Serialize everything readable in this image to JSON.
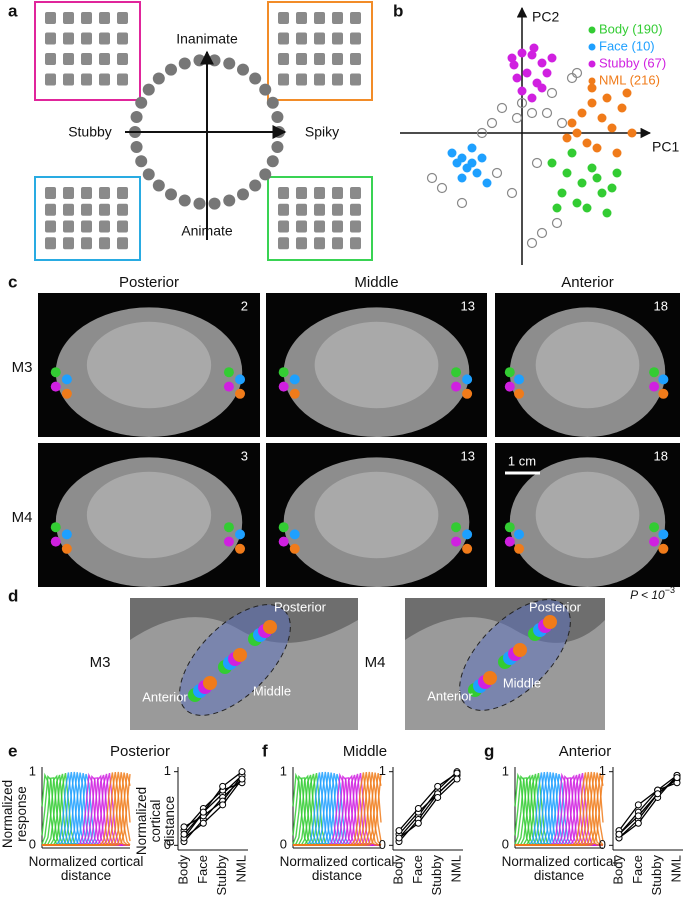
{
  "panels": {
    "a": {
      "label": "a",
      "axes": {
        "top": "Inanimate",
        "bottom": "Animate",
        "left": "Stubby",
        "right": "Spiky"
      }
    },
    "b": {
      "label": "b"
    },
    "c": {
      "label": "c",
      "columns": [
        "Posterior",
        "Middle",
        "Anterior"
      ],
      "rows": [
        "M3",
        "M4"
      ],
      "slices": [
        [
          2,
          13,
          18
        ],
        [
          3,
          13,
          18
        ]
      ],
      "scale": "1 cm"
    },
    "d": {
      "label": "d",
      "stat": {
        "text": "P < 10",
        "exponent": "−3"
      },
      "maps": [
        {
          "monkey": "M3",
          "labels": [
            "Posterior",
            "Anterior",
            "Middle"
          ]
        },
        {
          "monkey": "M4",
          "labels": [
            "Posterior",
            "Anterior",
            "Middle"
          ]
        }
      ]
    },
    "tuning": [
      {
        "y_label": "Normalized response",
        "x_label": "Normalized cortical distance",
        "yticks": [
          0,
          1
        ]
      },
      {
        "x_label": "Normalized cortical distance",
        "yticks": [
          0,
          1
        ]
      },
      {
        "x_label": "Normalized cortical distance",
        "yticks": [
          0,
          1
        ]
      }
    ]
  },
  "chart_data": [
    {
      "type": "scatter",
      "x_label": "PC1",
      "y_label": "PC2",
      "xlim": [
        -1.2,
        1.4
      ],
      "ylim": [
        -1.3,
        1.2
      ],
      "series": [
        {
          "name": "Body (190)",
          "color": "#33cc33",
          "x": [
            0.3,
            0.45,
            0.6,
            0.7,
            0.8,
            0.9,
            0.55,
            0.65,
            0.4,
            0.75,
            0.85,
            0.5,
            0.35,
            0.95
          ],
          "y": [
            -0.3,
            -0.4,
            -0.5,
            -0.35,
            -0.6,
            -0.55,
            -0.7,
            -0.75,
            -0.6,
            -0.45,
            -0.8,
            -0.2,
            -0.75,
            -0.4
          ]
        },
        {
          "name": "Face (10)",
          "color": "#1ea0ff",
          "x": [
            -0.7,
            -0.6,
            -0.5,
            -0.45,
            -0.55,
            -0.65,
            -0.4,
            -0.35,
            -0.6,
            -0.5
          ],
          "y": [
            -0.2,
            -0.25,
            -0.3,
            -0.4,
            -0.35,
            -0.3,
            -0.25,
            -0.5,
            -0.45,
            -0.15
          ]
        },
        {
          "name": "Stubby (67)",
          "color": "#d020e0",
          "x": [
            -0.1,
            0,
            0.1,
            0.2,
            0.05,
            -0.05,
            0.15,
            0.25,
            0.0,
            0.1,
            -0.08,
            0.2,
            0.12,
            0.3
          ],
          "y": [
            0.75,
            0.8,
            0.78,
            0.7,
            0.6,
            0.55,
            0.5,
            0.6,
            0.42,
            0.35,
            0.68,
            0.45,
            0.85,
            0.75
          ]
        },
        {
          "name": "NML (216)",
          "color": "#f07b1a",
          "x": [
            0.5,
            0.6,
            0.7,
            0.8,
            0.9,
            1.0,
            1.1,
            0.65,
            0.75,
            0.85,
            0.55,
            0.95,
            1.05,
            0.7,
            0.45
          ],
          "y": [
            0.1,
            0.2,
            0.3,
            0.15,
            0.05,
            0.25,
            0.0,
            -0.1,
            -0.15,
            0.35,
            0.0,
            -0.2,
            0.4,
            0.45,
            -0.05
          ]
        },
        {
          "color": "#888888",
          "x": [
            -0.9,
            -0.8,
            -0.3,
            -0.2,
            0.0,
            0.1,
            0.3,
            0.4,
            -0.1,
            0.2,
            -0.4,
            0.5,
            -0.6,
            0.15,
            0.35,
            0.25,
            -0.05,
            0.55,
            -0.25,
            0.1
          ],
          "y": [
            -0.45,
            -0.55,
            0.1,
            0.25,
            0.3,
            0.2,
            0.4,
            0.1,
            -0.6,
            -1.0,
            0.0,
            0.55,
            -0.7,
            -0.3,
            -0.9,
            0.2,
            0.15,
            0.6,
            -0.4,
            -1.1
          ]
        }
      ]
    },
    {
      "type": "line",
      "panel": "e",
      "title": "Posterior",
      "y_label": "Normalized cortical distance",
      "categories": [
        "Body",
        "Face",
        "Stubby",
        "NML"
      ],
      "ylim": [
        -0.05,
        1.05
      ],
      "yticks": [
        0,
        1
      ],
      "color": "#000000",
      "series": [
        {
          "values": [
            0.1,
            0.45,
            0.7,
            0.95
          ]
        },
        {
          "values": [
            0.05,
            0.35,
            0.65,
            0.9
          ]
        },
        {
          "values": [
            0.2,
            0.5,
            0.75,
            0.85
          ]
        },
        {
          "values": [
            0.25,
            0.4,
            0.6,
            0.95
          ]
        },
        {
          "values": [
            0.1,
            0.3,
            0.55,
            0.9
          ]
        },
        {
          "values": [
            0.15,
            0.45,
            0.8,
            1.0
          ]
        }
      ]
    },
    {
      "type": "line",
      "panel": "f",
      "title": "Middle",
      "categories": [
        "Body",
        "Face",
        "Stubby",
        "NML"
      ],
      "ylim": [
        -0.05,
        1.05
      ],
      "yticks": [
        0,
        1
      ],
      "color": "#000000",
      "series": [
        {
          "values": [
            0.1,
            0.4,
            0.75,
            1.0
          ]
        },
        {
          "values": [
            0.15,
            0.45,
            0.7,
            0.95
          ]
        },
        {
          "values": [
            0.05,
            0.35,
            0.7,
            0.95
          ]
        },
        {
          "values": [
            0.2,
            0.5,
            0.8,
            0.98
          ]
        },
        {
          "values": [
            0.1,
            0.3,
            0.65,
            0.9
          ]
        }
      ]
    },
    {
      "type": "line",
      "panel": "g",
      "title": "Anterior",
      "categories": [
        "Body",
        "Face",
        "Stubby",
        "NML"
      ],
      "ylim": [
        -0.05,
        1.05
      ],
      "yticks": [
        0,
        1
      ],
      "color": "#000000",
      "series": [
        {
          "values": [
            0.15,
            0.45,
            0.75,
            0.95
          ]
        },
        {
          "values": [
            0.1,
            0.35,
            0.7,
            0.9
          ]
        },
        {
          "values": [
            0.2,
            0.55,
            0.75,
            0.85
          ]
        },
        {
          "values": [
            0.1,
            0.3,
            0.65,
            0.95
          ]
        },
        {
          "values": [
            0.15,
            0.4,
            0.7,
            0.92
          ]
        }
      ]
    }
  ]
}
